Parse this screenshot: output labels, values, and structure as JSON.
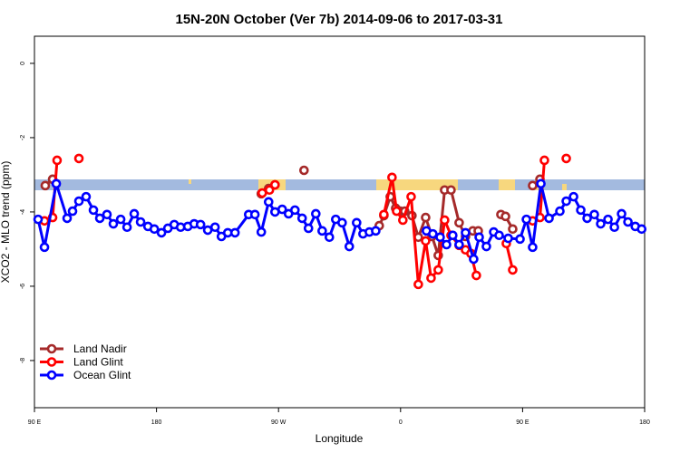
{
  "chart_data": {
    "type": "line",
    "title": "15N-20N October (Ver 7b)   2014-09-06 to 2017-03-31",
    "x_label": "Longitude",
    "y_label": "XCO2 - MLO trend (ppm)",
    "xlim": [
      90,
      540
    ],
    "ylim": [
      -9.27,
      0.73
    ],
    "xticks": [
      {
        "value": 90,
        "label": "90 E"
      },
      {
        "value": 180,
        "label": "180"
      },
      {
        "value": 270,
        "label": "90 W"
      },
      {
        "value": 360,
        "label": "0"
      },
      {
        "value": 450,
        "label": "90 E"
      },
      {
        "value": 540,
        "label": "180"
      }
    ],
    "yticks": [
      0,
      -2,
      -4,
      -6,
      -8
    ],
    "legend": "bottom-left",
    "series": [
      {
        "name": "Land Nadir",
        "color": "#a52a2a",
        "x": [
          98.0,
          103.4,
          null,
          257.3,
          262.7,
          267.4,
          null,
          288.8,
          null,
          344.3,
          347.7,
          352.4,
          356.4,
          359.7,
          363.1,
          368.4,
          373.1,
          378.5,
          383.2,
          387.8,
          392.5,
          397.2,
          403.2,
          407.9,
          413.3,
          417.3,
          null,
          434.0,
          437.4,
          442.7,
          null,
          457.4,
          462.8
        ],
        "values": [
          -3.29,
          -3.12,
          null,
          -3.51,
          -3.37,
          -3.27,
          null,
          -2.88,
          null,
          -4.37,
          -4.1,
          -3.59,
          -3.9,
          -3.98,
          -3.98,
          -4.1,
          -4.68,
          -4.15,
          -4.66,
          -5.17,
          -3.41,
          -3.41,
          -4.29,
          -4.66,
          -4.51,
          -4.51,
          null,
          -4.07,
          -4.12,
          -4.46,
          null,
          -3.29,
          -3.12
        ]
      },
      {
        "name": "Land Glint",
        "color": "#ff0000",
        "x": [
          97.4,
          103.4,
          106.7,
          null,
          122.8,
          null,
          258.0,
          263.3,
          267.4,
          null,
          347.7,
          353.7,
          357.1,
          361.7,
          367.8,
          373.1,
          378.5,
          382.5,
          387.8,
          392.5,
          397.2,
          403.2,
          407.9,
          411.9,
          415.9,
          null,
          438.0,
          442.7,
          null,
          457.4,
          462.8,
          466.1,
          null,
          482.2
        ],
        "values": [
          -4.24,
          -4.15,
          -2.61,
          null,
          -2.56,
          null,
          -3.49,
          -3.41,
          -3.27,
          null,
          -4.07,
          -3.07,
          -3.98,
          -4.22,
          -3.59,
          -5.95,
          -4.78,
          -5.78,
          -5.56,
          -4.22,
          -4.63,
          -4.9,
          -5.02,
          -5.12,
          -5.71,
          null,
          -4.85,
          -5.56,
          null,
          -4.24,
          -4.15,
          -2.61,
          null,
          -2.56
        ]
      },
      {
        "name": "Ocean Glint",
        "color": "#0000ff",
        "x": [
          92.7,
          97.4,
          106.1,
          114.1,
          118.1,
          122.8,
          128.1,
          133.5,
          138.2,
          143.5,
          148.2,
          153.6,
          158.3,
          163.6,
          168.3,
          173.7,
          178.4,
          183.7,
          188.4,
          193.1,
          197.8,
          203.1,
          207.8,
          212.5,
          217.8,
          223.2,
          227.9,
          232.6,
          237.9,
          248.0,
          252.6,
          257.3,
          262.7,
          267.4,
          272.7,
          277.4,
          282.1,
          287.4,
          292.1,
          297.5,
          302.2,
          307.5,
          312.2,
          316.9,
          322.2,
          327.6,
          332.3,
          337.0,
          341.7,
          null,
          379.1,
          383.8,
          389.2,
          393.9,
          398.5,
          403.2,
          407.9,
          413.9,
          418.0,
          423.3,
          428.7,
          432.7,
          439.4,
          448.1,
          452.8,
          457.4,
          463.5,
          469.5,
          477.5,
          482.2,
          487.6,
          492.9,
          497.6,
          502.9,
          507.6,
          513.0,
          517.7,
          523.0,
          527.7,
          533.1,
          537.8
        ],
        "values": [
          -4.2,
          -4.95,
          -3.24,
          -4.17,
          -3.98,
          -3.71,
          -3.59,
          -3.95,
          -4.17,
          -4.07,
          -4.32,
          -4.2,
          -4.41,
          -4.05,
          -4.27,
          -4.39,
          -4.46,
          -4.56,
          -4.44,
          -4.34,
          -4.41,
          -4.39,
          -4.32,
          -4.34,
          -4.49,
          -4.41,
          -4.66,
          -4.56,
          -4.56,
          -4.07,
          -4.07,
          -4.54,
          -3.73,
          -4.0,
          -3.93,
          -4.05,
          -3.95,
          -4.17,
          -4.44,
          -4.05,
          -4.51,
          -4.68,
          -4.2,
          -4.29,
          -4.93,
          -4.29,
          -4.59,
          -4.54,
          -4.51,
          null,
          -4.51,
          -4.59,
          -4.68,
          -4.88,
          -4.63,
          -4.88,
          -4.56,
          -5.27,
          -4.68,
          -4.93,
          -4.54,
          -4.63,
          -4.71,
          -4.73,
          -4.2,
          -4.95,
          -3.24,
          -4.17,
          -3.98,
          -3.71,
          -3.59,
          -3.95,
          -4.17,
          -4.07,
          -4.32,
          -4.2,
          -4.41,
          -4.05,
          -4.27,
          -4.39,
          -4.46
        ]
      }
    ]
  }
}
